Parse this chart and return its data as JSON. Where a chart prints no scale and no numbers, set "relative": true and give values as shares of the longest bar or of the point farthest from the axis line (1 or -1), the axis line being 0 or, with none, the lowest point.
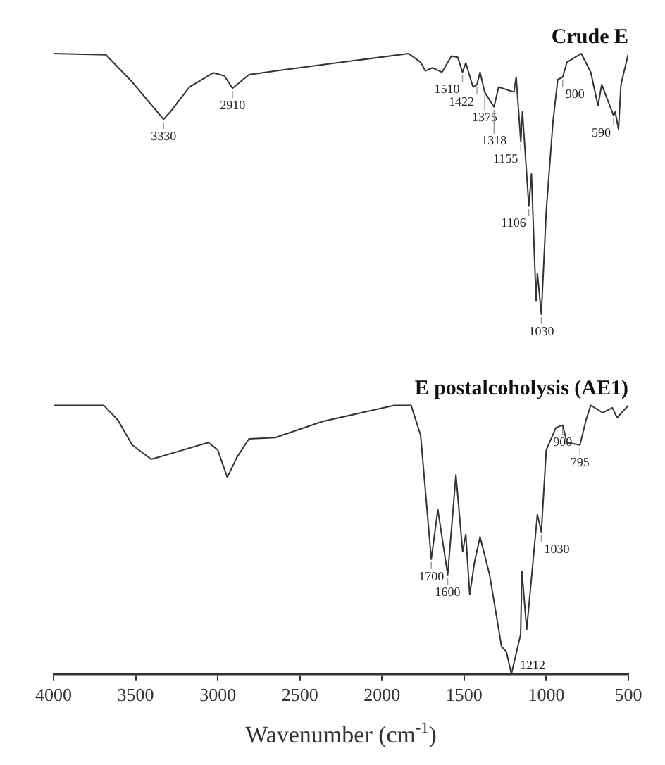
{
  "chart_data": {
    "type": "line",
    "relative": true,
    "xlabel": "Wavenumber (cm$^{-1}$)",
    "xlim": [
      4000,
      500
    ],
    "xticks": [
      4000,
      3500,
      3000,
      2500,
      2000,
      1500,
      1000,
      500
    ],
    "grid": false,
    "legend": false,
    "marker": "none",
    "line_style": "solid",
    "tick_labels": "x",
    "series": [
      {
        "name": "Crude E",
        "color": "#333333",
        "x": [
          4000,
          3681,
          3521,
          3330,
          3289,
          3173,
          3028,
          2960,
          2910,
          2810,
          2651,
          1838,
          1765,
          1736,
          1693,
          1635,
          1577,
          1539,
          1510,
          1490,
          1446,
          1422,
          1403,
          1375,
          1318,
          1290,
          1197,
          1183,
          1155,
          1145,
          1106,
          1090,
          1062,
          1054,
          1030,
          1000,
          959,
          930,
          900,
          874,
          787,
          729,
          685,
          662,
          590,
          580,
          560,
          545,
          500
        ],
        "values": [
          1.0,
          0.998,
          0.954,
          0.894,
          0.906,
          0.946,
          0.969,
          0.964,
          0.944,
          0.966,
          0.972,
          1.0,
          0.986,
          0.972,
          0.977,
          0.97,
          0.996,
          0.994,
          0.97,
          0.985,
          0.946,
          0.95,
          0.97,
          0.938,
          0.914,
          0.946,
          0.938,
          0.962,
          0.858,
          0.906,
          0.754,
          0.806,
          0.601,
          0.646,
          0.58,
          0.746,
          0.89,
          0.958,
          0.962,
          0.986,
          1.0,
          0.97,
          0.916,
          0.95,
          0.9,
          0.906,
          0.878,
          0.95,
          1.0
        ]
      },
      {
        "name": "E postalcoholysis (AE1)",
        "color": "#333333",
        "x": [
          4000,
          3695,
          3608,
          3521,
          3405,
          3057,
          3000,
          2942,
          2884,
          2810,
          2651,
          2361,
          1925,
          1823,
          1765,
          1700,
          1660,
          1600,
          1550,
          1509,
          1490,
          1466,
          1437,
          1403,
          1345,
          1272,
          1243,
          1212,
          1156,
          1148,
          1119,
          1054,
          1030,
          1000,
          941,
          900,
          874,
          795,
          758,
          729,
          656,
          597,
          569,
          500
        ],
        "values": [
          0.433,
          0.433,
          0.409,
          0.369,
          0.346,
          0.373,
          0.361,
          0.317,
          0.349,
          0.379,
          0.381,
          0.407,
          0.433,
          0.433,
          0.385,
          0.185,
          0.265,
          0.16,
          0.321,
          0.197,
          0.225,
          0.128,
          0.18,
          0.221,
          0.16,
          0.044,
          0.036,
          0.0,
          0.064,
          0.165,
          0.072,
          0.257,
          0.229,
          0.361,
          0.397,
          0.401,
          0.373,
          0.369,
          0.409,
          0.433,
          0.421,
          0.429,
          0.413,
          0.433
        ]
      }
    ],
    "annotations": [
      {
        "text": "3330",
        "x": 3330,
        "y": 0.894
      },
      {
        "text": "2910",
        "x": 2910,
        "y": 0.944
      },
      {
        "text": "1510",
        "x": 1510,
        "y": 0.97
      },
      {
        "text": "1422",
        "x": 1422,
        "y": 0.95
      },
      {
        "text": "1375",
        "x": 1375,
        "y": 0.938
      },
      {
        "text": "1318",
        "x": 1318,
        "y": 0.914
      },
      {
        "text": "1155",
        "x": 1155,
        "y": 0.858
      },
      {
        "text": "1106",
        "x": 1106,
        "y": 0.754
      },
      {
        "text": "1030",
        "x": 1030,
        "y": 0.58
      },
      {
        "text": "900",
        "x": 900,
        "y": 0.962
      },
      {
        "text": "590",
        "x": 590,
        "y": 0.9
      },
      {
        "text": "1700",
        "x": 1700,
        "y": 0.185
      },
      {
        "text": "1600",
        "x": 1600,
        "y": 0.16
      },
      {
        "text": "1212",
        "x": 1212,
        "y": 0.0
      },
      {
        "text": "1030",
        "x": 1030,
        "y": 0.229
      },
      {
        "text": "900",
        "x": 900,
        "y": 0.401
      },
      {
        "text": "795",
        "x": 795,
        "y": 0.369
      }
    ]
  }
}
